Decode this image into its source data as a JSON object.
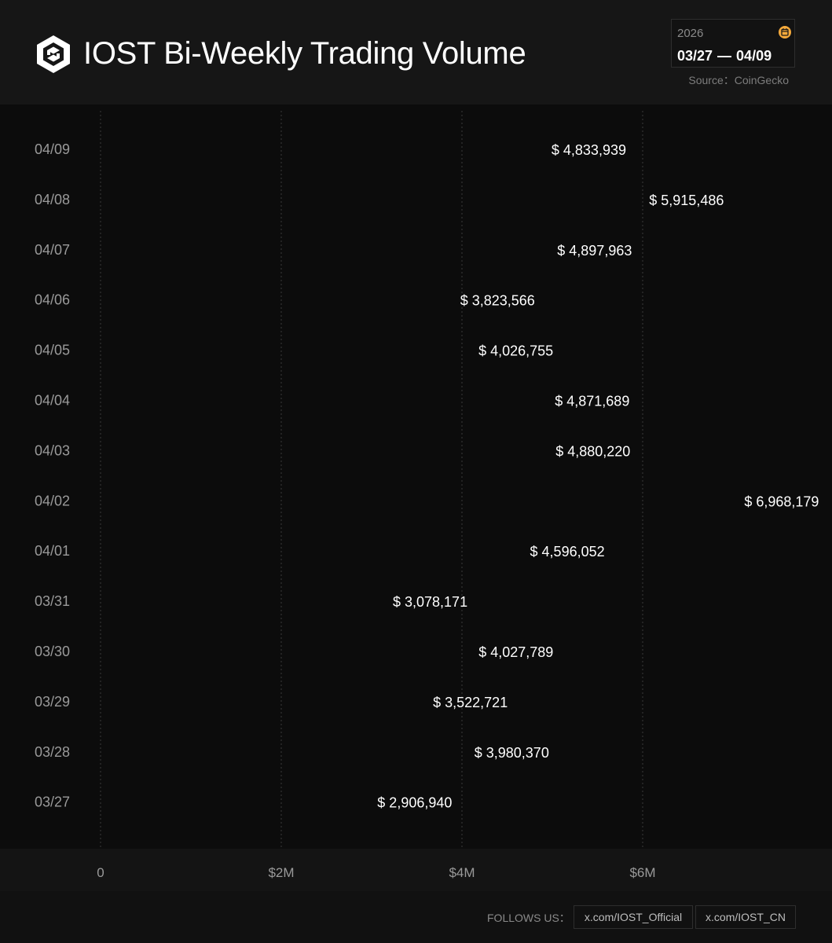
{
  "header": {
    "title": "IOST Bi-Weekly Trading Volume",
    "year": "2026",
    "date_start": "03/27",
    "date_sep": "—",
    "date_end": "04/09",
    "source": "Source：CoinGecko"
  },
  "footer": {
    "follows_label": "FOLLOWS US：",
    "links": [
      "x.com/IOST_Official",
      "x.com/IOST_CN"
    ]
  },
  "colors": {
    "background": "#0c0c0c",
    "header_bg": "#161616",
    "accent_calendar": "#f5a93b",
    "bar_start": "#4a4a4a",
    "bar_end": "#f2f2f2"
  },
  "icons": [
    "iost-logo-icon",
    "calendar-icon"
  ],
  "chart_data": {
    "type": "bar",
    "orientation": "horizontal",
    "categories": [
      "04/09",
      "04/08",
      "04/07",
      "04/06",
      "04/05",
      "04/04",
      "04/03",
      "04/02",
      "04/01",
      "03/31",
      "03/30",
      "03/29",
      "03/28",
      "03/27"
    ],
    "values": [
      4833939,
      5915486,
      4897963,
      3823566,
      4026755,
      4871689,
      4880220,
      6968179,
      4596052,
      3078171,
      4027789,
      3522721,
      3980370,
      2906940
    ],
    "value_labels": [
      "$ 4,833,939",
      "$ 5,915,486",
      "$ 4,897,963",
      "$ 3,823,566",
      "$ 4,026,755",
      "$ 4,871,689",
      "$ 4,880,220",
      "$ 6,968,179",
      "$ 4,596,052",
      "$ 3,078,171",
      "$ 4,027,789",
      "$ 3,522,721",
      "$ 3,980,370",
      "$ 2,906,940"
    ],
    "xticks": [
      0,
      2000000,
      4000000,
      6000000
    ],
    "xtick_labels": [
      "0",
      "$2M",
      "$4M",
      "$6M"
    ],
    "xlim": [
      0,
      8000000
    ],
    "grid": "vertical-dashed",
    "title": "IOST Bi-Weekly Trading Volume"
  }
}
